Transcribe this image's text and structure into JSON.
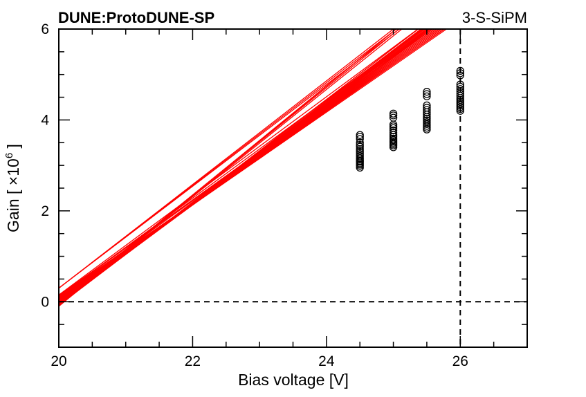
{
  "header": {
    "left_text": "DUNE:ProtoDUNE-SP",
    "right_text": "3-S-SiPM"
  },
  "chart_data": {
    "type": "scatter",
    "xlabel": "Bias voltage [V]",
    "ylabel_main": "Gain [ ",
    "ylabel_times": "×10",
    "ylabel_exp": "6",
    "ylabel_close": " ]",
    "xlim": [
      20,
      27
    ],
    "ylim": [
      -1,
      6
    ],
    "x_ticks": [
      "20",
      "22",
      "24",
      "26"
    ],
    "y_ticks": [
      "0",
      "2",
      "4",
      "6"
    ],
    "reference_lines": {
      "vertical_x": 26,
      "horizontal_y": 0,
      "style": "dashed"
    },
    "fit_line_color": "#ff0000",
    "marker_color": "#000000",
    "fit_x_range": [
      20,
      26.5
    ],
    "measurement_voltages": [
      24.5,
      25.0,
      25.5,
      26.0
    ],
    "gain_at_24_5": [
      2.95,
      2.99,
      3.02,
      3.05,
      3.08,
      3.1,
      3.13,
      3.16,
      3.2,
      3.24,
      3.28,
      3.32,
      3.36,
      3.41,
      3.45,
      3.5,
      3.58,
      3.63,
      3.67
    ],
    "gain_at_25_0": [
      3.4,
      3.44,
      3.47,
      3.5,
      3.53,
      3.56,
      3.59,
      3.63,
      3.67,
      3.72,
      3.77,
      3.82,
      3.86,
      3.9,
      4.05,
      4.1,
      4.14
    ],
    "gain_at_25_5": [
      3.79,
      3.83,
      3.87,
      3.91,
      3.95,
      3.99,
      4.03,
      4.07,
      4.12,
      4.17,
      4.22,
      4.27,
      4.32,
      4.52,
      4.57,
      4.62
    ],
    "gain_at_26_0": [
      4.2,
      4.24,
      4.28,
      4.32,
      4.36,
      4.4,
      4.44,
      4.48,
      4.53,
      4.58,
      4.63,
      4.68,
      4.73,
      4.78,
      4.98,
      5.03,
      5.08
    ],
    "fit_lines": [
      {
        "slope": 1.13,
        "intercept": -22.67
      },
      {
        "slope": 1.13,
        "intercept": -22.67
      },
      {
        "slope": 1.12,
        "intercept": -22.48
      },
      {
        "slope": 1.12,
        "intercept": -22.46
      },
      {
        "slope": 1.11,
        "intercept": -22.27
      },
      {
        "slope": 1.11,
        "intercept": -22.25
      },
      {
        "slope": 1.1,
        "intercept": -22.06
      },
      {
        "slope": 1.1,
        "intercept": -22.04
      },
      {
        "slope": 1.09,
        "intercept": -21.85
      },
      {
        "slope": 1.09,
        "intercept": -21.82
      },
      {
        "slope": 1.08,
        "intercept": -21.63
      },
      {
        "slope": 1.08,
        "intercept": -21.6
      },
      {
        "slope": 1.07,
        "intercept": -21.41
      },
      {
        "slope": 1.07,
        "intercept": -21.38
      },
      {
        "slope": 1.06,
        "intercept": -21.19
      },
      {
        "slope": 1.06,
        "intercept": -21.16
      },
      {
        "slope": 1.05,
        "intercept": -20.97
      },
      {
        "slope": 1.05,
        "intercept": -20.94
      },
      {
        "slope": 1.04,
        "intercept": -20.75
      },
      {
        "slope": 1.04,
        "intercept": -20.72
      },
      {
        "slope": 1.03,
        "intercept": -20.53
      },
      {
        "slope": 1.03,
        "intercept": -20.5
      },
      {
        "slope": 1.02,
        "intercept": -20.31
      },
      {
        "slope": 1.02,
        "intercept": -20.28
      },
      {
        "slope": 1.12,
        "intercept": -22.1
      },
      {
        "slope": 1.13,
        "intercept": -22.3
      },
      {
        "slope": 1.14,
        "intercept": -22.5
      },
      {
        "slope": 1.18,
        "intercept": -23.65
      },
      {
        "slope": 1.19,
        "intercept": -23.85
      },
      {
        "slope": 1.2,
        "intercept": -24.05
      },
      {
        "slope": 1.21,
        "intercept": -24.3
      },
      {
        "slope": 1.09,
        "intercept": -21.65
      },
      {
        "slope": 1.08,
        "intercept": -21.48
      },
      {
        "slope": 1.07,
        "intercept": -21.32
      },
      {
        "slope": 1.06,
        "intercept": -21.08
      },
      {
        "slope": 1.05,
        "intercept": -20.86
      }
    ]
  }
}
